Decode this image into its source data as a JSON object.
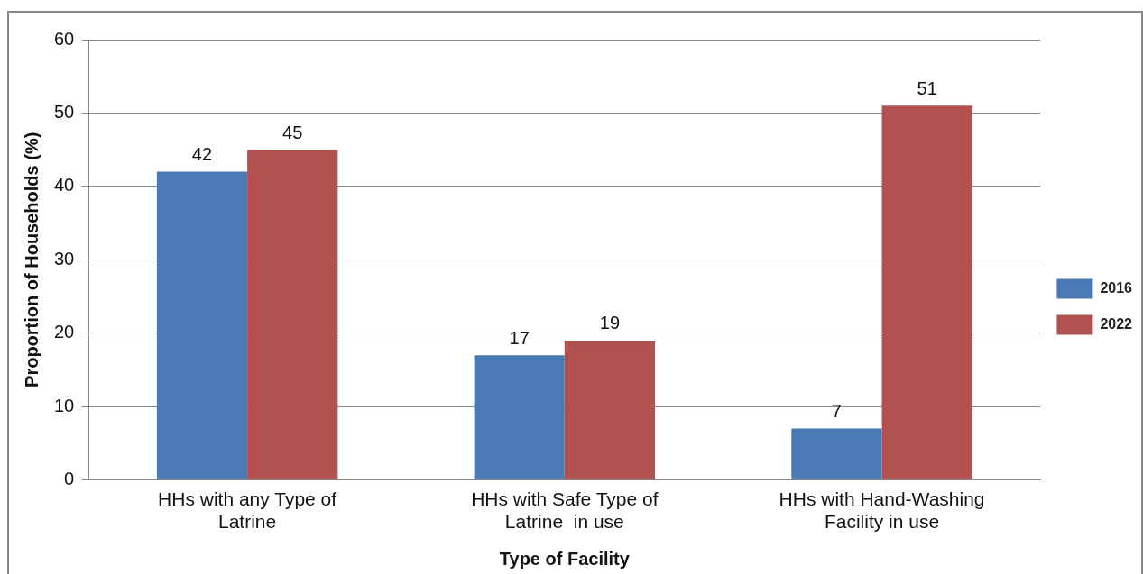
{
  "chart_data": {
    "type": "bar",
    "xlabel": "Type of Facility",
    "ylabel": "Proportion of Households (%)",
    "categories": [
      "HHs with any Type of Latrine",
      "HHs with Safe Type of Latrine  in use",
      "HHs with Hand-Washing Facility in use"
    ],
    "series": [
      {
        "name": "2016",
        "color": "#4a7ab4",
        "values": [
          42,
          17,
          7
        ]
      },
      {
        "name": "2022",
        "color": "#b25250",
        "values": [
          45,
          19,
          51
        ]
      }
    ],
    "ylim": [
      0,
      60
    ],
    "yticks": [
      0,
      10,
      20,
      30,
      40,
      50,
      60
    ],
    "grid": "y",
    "legend": "right",
    "data_labels": true
  }
}
